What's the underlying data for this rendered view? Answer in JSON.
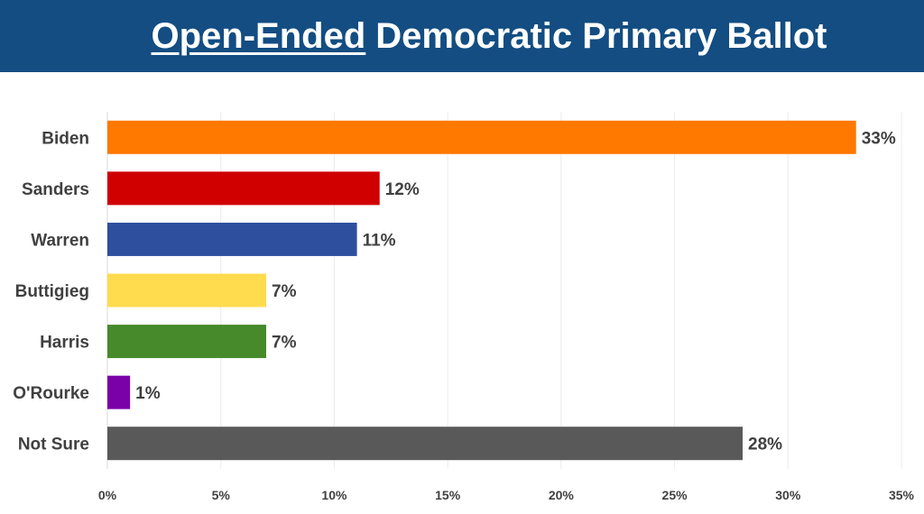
{
  "header": {
    "title_underlined": "Open-Ended",
    "title_rest": "Democratic Primary Ballot",
    "background_color": "#134d82"
  },
  "chart_data": {
    "type": "bar",
    "orientation": "horizontal",
    "title": "Open-Ended Democratic Primary Ballot",
    "categories": [
      "Biden",
      "Sanders",
      "Warren",
      "Buttigieg",
      "Harris",
      "O'Rourke",
      "Not Sure"
    ],
    "values": [
      33,
      12,
      11,
      7,
      7,
      1,
      28
    ],
    "value_labels": [
      "33%",
      "12%",
      "11%",
      "7%",
      "7%",
      "1%",
      "28%"
    ],
    "colors": [
      "#ff7800",
      "#d00000",
      "#2e4f9e",
      "#ffdb4d",
      "#468a2c",
      "#7a00a8",
      "#595959"
    ],
    "xlim": [
      0,
      35
    ],
    "xticks": [
      0,
      5,
      10,
      15,
      20,
      25,
      30,
      35
    ],
    "xtick_labels": [
      "0%",
      "5%",
      "10%",
      "15%",
      "20%",
      "25%",
      "30%",
      "35%"
    ],
    "xlabel": "",
    "ylabel": "",
    "grid": "vertical",
    "legend": "none"
  }
}
